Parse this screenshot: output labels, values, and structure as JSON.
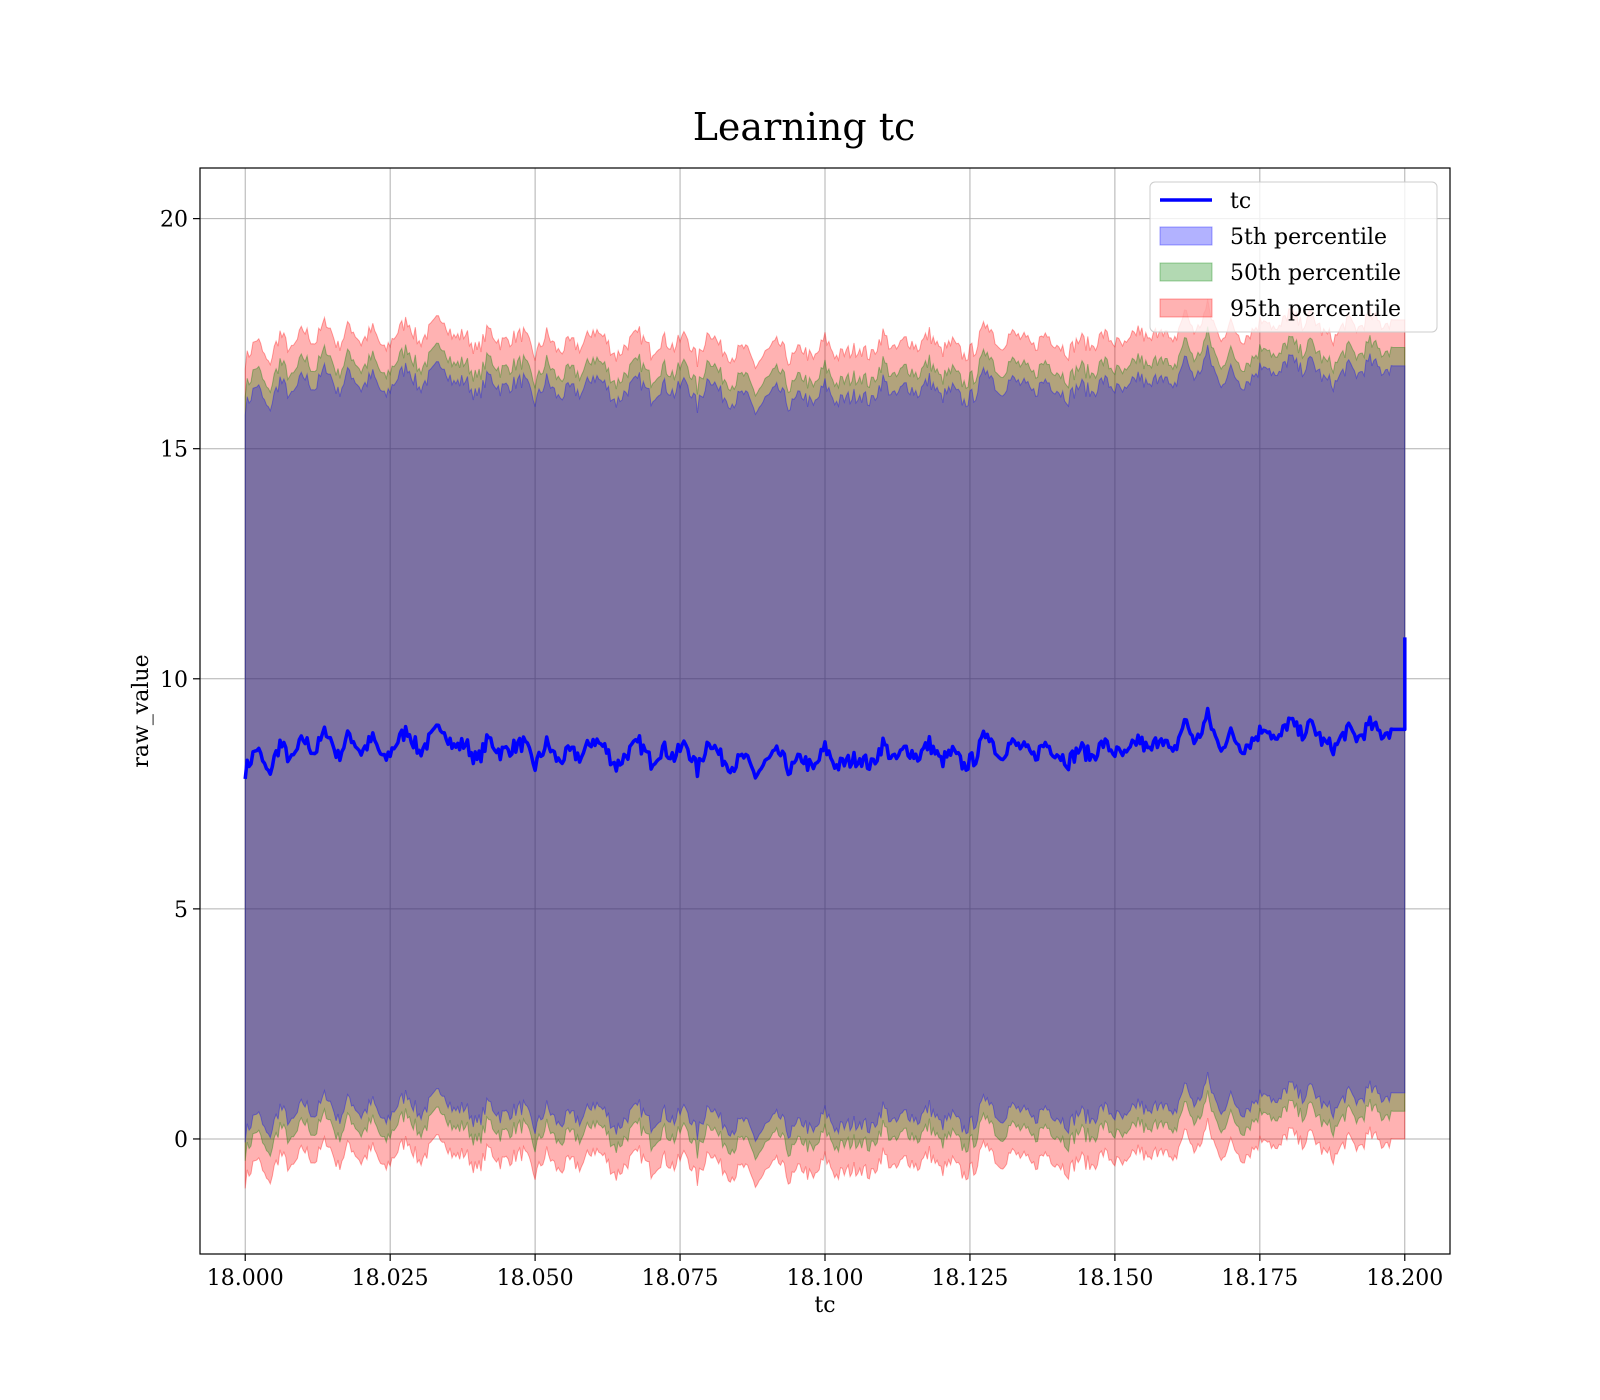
{
  "chart_data": {
    "type": "area",
    "title": "Learning tc",
    "xlabel": "tc",
    "ylabel": "raw_value",
    "xlim": [
      17.9922,
      18.2078
    ],
    "ylim": [
      -2.5,
      21.1
    ],
    "x_ticks": [
      18.0,
      18.025,
      18.05,
      18.075,
      18.1,
      18.125,
      18.15,
      18.175,
      18.2
    ],
    "x_tick_labels": [
      "18.000",
      "18.025",
      "18.050",
      "18.075",
      "18.100",
      "18.125",
      "18.150",
      "18.175",
      "18.200"
    ],
    "y_ticks": [
      0,
      5,
      10,
      15,
      20
    ],
    "y_tick_labels": [
      "0",
      "5",
      "10",
      "15",
      "20"
    ],
    "grid": true,
    "legend_position": "top-right",
    "colors": {
      "line": "#0000ff",
      "band_5": "#0000ff",
      "band_50": "#008000",
      "band_95": "#ff0000"
    },
    "legend": [
      {
        "label": "tc",
        "kind": "line",
        "color": "#0000ff"
      },
      {
        "label": "5th percentile",
        "kind": "patch",
        "color": "#0000ff"
      },
      {
        "label": "50th percentile",
        "kind": "patch",
        "color": "#008000"
      },
      {
        "label": "95th percentile",
        "kind": "patch",
        "color": "#ff0000"
      }
    ],
    "band_half_widths": {
      "band_5": 7.9,
      "band_50": 8.3,
      "band_95": 8.9
    },
    "series": [
      {
        "name": "tc",
        "x": [
          18.0,
          18.002,
          18.004,
          18.006,
          18.008,
          18.01,
          18.012,
          18.014,
          18.016,
          18.018,
          18.02,
          18.022,
          18.024,
          18.026,
          18.028,
          18.03,
          18.032,
          18.034,
          18.036,
          18.038,
          18.04,
          18.042,
          18.044,
          18.046,
          18.048,
          18.05,
          18.052,
          18.054,
          18.056,
          18.058,
          18.06,
          18.062,
          18.064,
          18.066,
          18.068,
          18.07,
          18.072,
          18.074,
          18.076,
          18.078,
          18.08,
          18.082,
          18.084,
          18.086,
          18.088,
          18.09,
          18.092,
          18.094,
          18.096,
          18.098,
          18.1,
          18.102,
          18.104,
          18.106,
          18.108,
          18.11,
          18.112,
          18.114,
          18.116,
          18.118,
          18.12,
          18.122,
          18.124,
          18.126,
          18.128,
          18.13,
          18.132,
          18.134,
          18.136,
          18.138,
          18.14,
          18.142,
          18.144,
          18.146,
          18.148,
          18.15,
          18.152,
          18.154,
          18.156,
          18.158,
          18.16,
          18.162,
          18.164,
          18.166,
          18.168,
          18.17,
          18.172,
          18.174,
          18.176,
          18.178,
          18.18,
          18.182,
          18.184,
          18.186,
          18.188,
          18.19,
          18.192,
          18.194,
          18.196,
          18.198,
          18.2
        ],
        "values": [
          8.0,
          8.5,
          7.9,
          8.6,
          8.2,
          8.7,
          8.4,
          8.9,
          8.3,
          8.8,
          8.4,
          8.7,
          8.2,
          8.6,
          8.9,
          8.4,
          8.7,
          9.0,
          8.5,
          8.6,
          8.2,
          8.7,
          8.4,
          8.5,
          8.6,
          8.1,
          8.6,
          8.2,
          8.4,
          8.3,
          8.7,
          8.5,
          8.1,
          8.4,
          8.6,
          8.2,
          8.5,
          8.3,
          8.6,
          8.0,
          8.7,
          8.3,
          8.1,
          8.3,
          7.9,
          8.2,
          8.4,
          8.0,
          8.3,
          8.0,
          8.5,
          8.1,
          8.2,
          8.3,
          8.1,
          8.6,
          8.2,
          8.5,
          8.3,
          8.6,
          8.2,
          8.4,
          8.1,
          8.3,
          8.9,
          8.3,
          8.6,
          8.5,
          8.3,
          8.6,
          8.4,
          8.2,
          8.5,
          8.3,
          8.6,
          8.4,
          8.3,
          8.7,
          8.4,
          8.8,
          8.3,
          9.1,
          8.6,
          9.2,
          8.5,
          8.8,
          8.5,
          8.7,
          9.0,
          8.6,
          9.1,
          8.8,
          9.0,
          8.6,
          8.5,
          8.9,
          8.7,
          9.0,
          8.8,
          8.9,
          10.9
        ]
      }
    ]
  }
}
